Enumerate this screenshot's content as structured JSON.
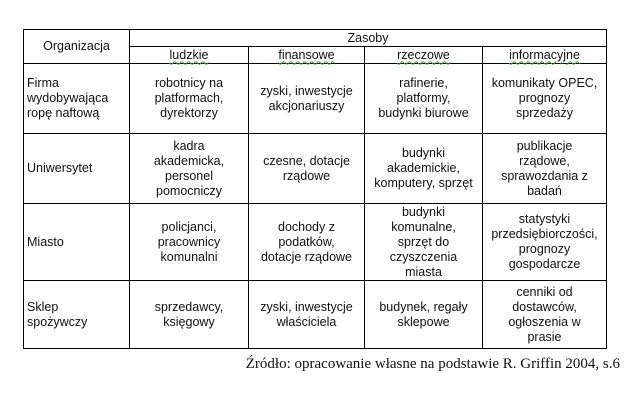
{
  "table": {
    "org_header": "Organizacja",
    "group_header": "Zasoby",
    "columns": [
      "ludzkie",
      "finansowe",
      "rzeczowe",
      "informacyjne"
    ],
    "rows": [
      {
        "org": "Firma\nwydobywająca\nropę naftową",
        "cells": [
          "robotnicy na\nplatformach,\ndyrektorzy",
          "zyski, inwestycje\nakcjonariuszy",
          "rafinerie,\nplatformy,\nbudynki biurowe",
          "komunikaty OPEC,\nprognozy\nsprzedaży"
        ]
      },
      {
        "org": "Uniwersytet",
        "cells": [
          "kadra\nakademicka,\npersonel\npomocniczy",
          "czesne, dotacje\nrządowe",
          "budynki\nakademickie,\nkomputery, sprzęt",
          "publikacje\nrządowe,\nsprawozdania z\nbadań"
        ]
      },
      {
        "org": "Miasto",
        "cells": [
          "policjanci,\npracownicy\nkomunalni",
          "dochody z\npodatków,\ndotacje rządowe",
          "budynki\nkomunalne,\nsprzęt do\nczyszczenia\nmiasta",
          "statystyki\nprzedsiębiorczości,\nprognozy\ngospodarcze"
        ]
      },
      {
        "org": "Sklep\nspożywczy",
        "cells": [
          "sprzedawcy,\nksięgowy",
          "zyski, inwestycje\nwłaściciela",
          "budynek, regały\nsklepowe",
          "cenniki od\ndostawców,\nogłoszenia w\nprasie"
        ]
      }
    ]
  },
  "source": "Źródło: opracowanie własne na podstawie R. Griffin 2004, s.6"
}
